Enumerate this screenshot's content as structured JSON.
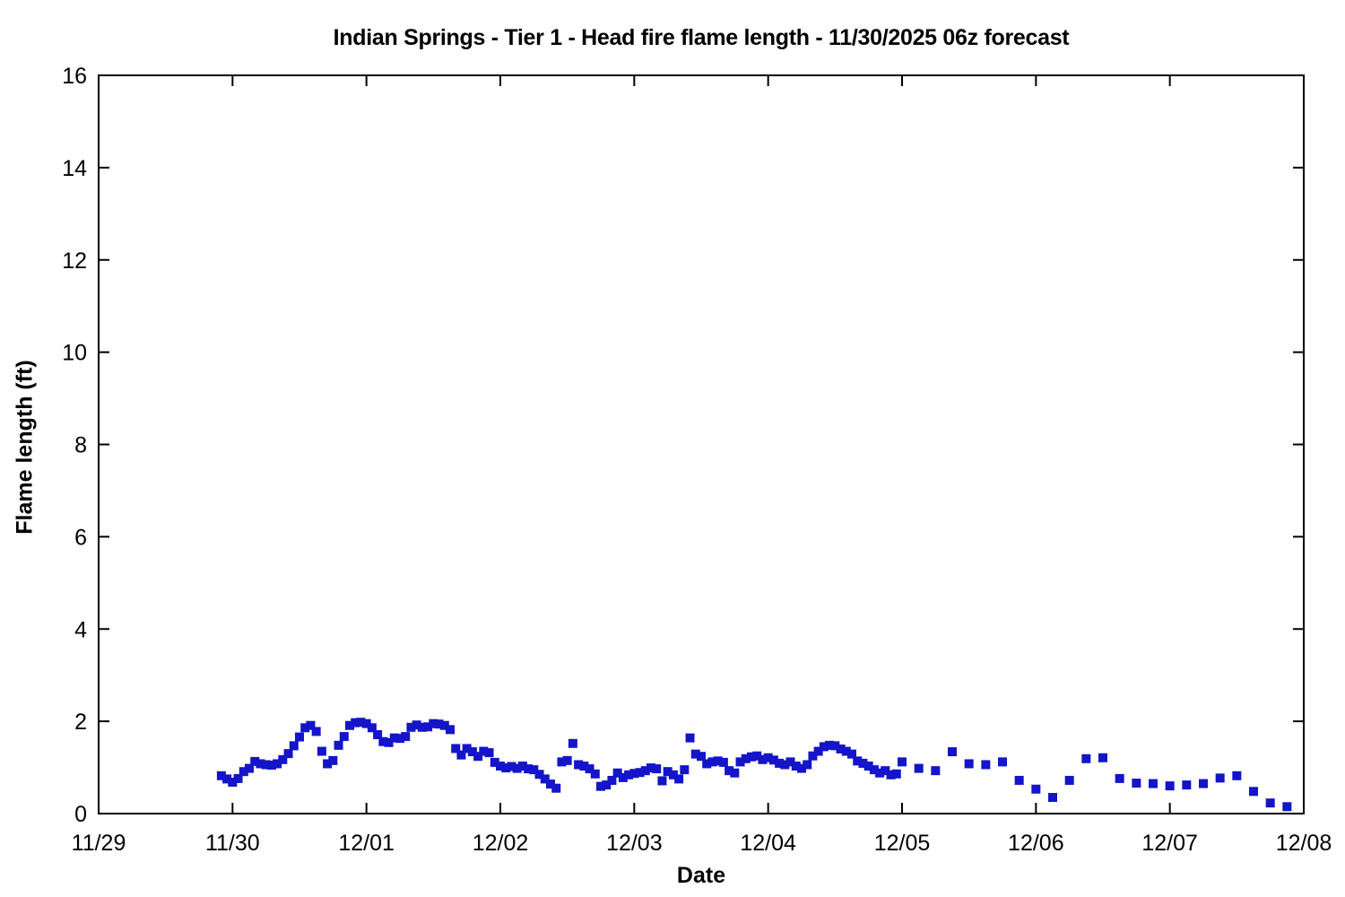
{
  "chart_data": {
    "type": "scatter",
    "title": "Indian Springs - Tier 1 - Head fire flame length - 11/30/2025 06z forecast",
    "xlabel": "Date",
    "ylabel": "Flame length (ft)",
    "marker": "filled-square",
    "marker_color": "#1414C8",
    "marker_size_px": 10,
    "axis_color": "#000000",
    "grid": "off",
    "legend": "none",
    "x_unit": "hours since 11/29 00:00",
    "x_range_hours": [
      0,
      216
    ],
    "ylim": [
      0,
      16
    ],
    "x_tick_labels": [
      "11/29",
      "11/30",
      "12/01",
      "12/02",
      "12/03",
      "12/04",
      "12/05",
      "12/06",
      "12/07",
      "12/08"
    ],
    "x_tick_hours": [
      0,
      24,
      48,
      72,
      96,
      120,
      144,
      168,
      192,
      216
    ],
    "y_ticks": [
      0,
      2,
      4,
      6,
      8,
      10,
      12,
      14,
      16
    ],
    "points": [
      [
        22,
        0.82
      ],
      [
        23,
        0.75
      ],
      [
        24,
        0.68
      ],
      [
        25,
        0.76
      ],
      [
        26,
        0.91
      ],
      [
        27,
        0.98
      ],
      [
        28,
        1.13
      ],
      [
        29,
        1.08
      ],
      [
        30,
        1.06
      ],
      [
        31,
        1.05
      ],
      [
        32,
        1.08
      ],
      [
        33,
        1.17
      ],
      [
        34,
        1.3
      ],
      [
        35,
        1.47
      ],
      [
        36,
        1.66
      ],
      [
        37,
        1.86
      ],
      [
        38,
        1.91
      ],
      [
        39,
        1.78
      ],
      [
        40,
        1.35
      ],
      [
        41,
        1.08
      ],
      [
        42,
        1.15
      ],
      [
        43,
        1.48
      ],
      [
        44,
        1.67
      ],
      [
        45,
        1.91
      ],
      [
        46,
        1.97
      ],
      [
        47,
        1.98
      ],
      [
        48,
        1.95
      ],
      [
        49,
        1.86
      ],
      [
        50,
        1.71
      ],
      [
        51,
        1.56
      ],
      [
        52,
        1.54
      ],
      [
        53,
        1.64
      ],
      [
        54,
        1.63
      ],
      [
        55,
        1.67
      ],
      [
        56,
        1.87
      ],
      [
        57,
        1.92
      ],
      [
        58,
        1.87
      ],
      [
        59,
        1.88
      ],
      [
        60,
        1.95
      ],
      [
        61,
        1.94
      ],
      [
        62,
        1.91
      ],
      [
        63,
        1.82
      ],
      [
        64,
        1.41
      ],
      [
        65,
        1.27
      ],
      [
        66,
        1.41
      ],
      [
        67,
        1.34
      ],
      [
        68,
        1.24
      ],
      [
        69,
        1.35
      ],
      [
        70,
        1.32
      ],
      [
        71,
        1.11
      ],
      [
        72,
        1.03
      ],
      [
        73,
        0.99
      ],
      [
        74,
        1.02
      ],
      [
        75,
        0.98
      ],
      [
        76,
        1.03
      ],
      [
        77,
        0.97
      ],
      [
        78,
        0.95
      ],
      [
        79,
        0.85
      ],
      [
        80,
        0.75
      ],
      [
        81,
        0.64
      ],
      [
        82,
        0.55
      ],
      [
        83,
        1.12
      ],
      [
        84,
        1.15
      ],
      [
        85,
        1.52
      ],
      [
        86,
        1.06
      ],
      [
        87,
        1.03
      ],
      [
        88,
        0.97
      ],
      [
        89,
        0.86
      ],
      [
        90,
        0.59
      ],
      [
        91,
        0.62
      ],
      [
        92,
        0.72
      ],
      [
        93,
        0.88
      ],
      [
        94,
        0.78
      ],
      [
        95,
        0.84
      ],
      [
        96,
        0.87
      ],
      [
        97,
        0.89
      ],
      [
        98,
        0.93
      ],
      [
        99,
        0.99
      ],
      [
        100,
        0.97
      ],
      [
        101,
        0.71
      ],
      [
        102,
        0.91
      ],
      [
        103,
        0.84
      ],
      [
        104,
        0.75
      ],
      [
        105,
        0.95
      ],
      [
        106,
        1.64
      ],
      [
        107,
        1.29
      ],
      [
        108,
        1.24
      ],
      [
        109,
        1.08
      ],
      [
        110,
        1.12
      ],
      [
        111,
        1.14
      ],
      [
        112,
        1.11
      ],
      [
        113,
        0.93
      ],
      [
        114,
        0.88
      ],
      [
        115,
        1.12
      ],
      [
        116,
        1.19
      ],
      [
        117,
        1.23
      ],
      [
        118,
        1.25
      ],
      [
        119,
        1.17
      ],
      [
        120,
        1.21
      ],
      [
        121,
        1.16
      ],
      [
        122,
        1.09
      ],
      [
        123,
        1.06
      ],
      [
        124,
        1.12
      ],
      [
        125,
        1.03
      ],
      [
        126,
        0.98
      ],
      [
        127,
        1.06
      ],
      [
        128,
        1.25
      ],
      [
        129,
        1.35
      ],
      [
        130,
        1.45
      ],
      [
        131,
        1.48
      ],
      [
        132,
        1.47
      ],
      [
        133,
        1.4
      ],
      [
        134,
        1.35
      ],
      [
        135,
        1.29
      ],
      [
        136,
        1.14
      ],
      [
        137,
        1.09
      ],
      [
        138,
        1.03
      ],
      [
        139,
        0.95
      ],
      [
        140,
        0.88
      ],
      [
        141,
        0.93
      ],
      [
        142,
        0.84
      ],
      [
        143,
        0.86
      ],
      [
        144,
        1.12
      ],
      [
        147,
        0.98
      ],
      [
        150,
        0.93
      ],
      [
        153,
        1.34
      ],
      [
        156,
        1.08
      ],
      [
        159,
        1.06
      ],
      [
        162,
        1.12
      ],
      [
        165,
        0.72
      ],
      [
        168,
        0.53
      ],
      [
        171,
        0.35
      ],
      [
        174,
        0.72
      ],
      [
        177,
        1.19
      ],
      [
        180,
        1.21
      ],
      [
        183,
        0.76
      ],
      [
        186,
        0.66
      ],
      [
        189,
        0.65
      ],
      [
        192,
        0.6
      ],
      [
        195,
        0.62
      ],
      [
        198,
        0.65
      ],
      [
        201,
        0.77
      ],
      [
        204,
        0.82
      ],
      [
        207,
        0.48
      ],
      [
        210,
        0.23
      ],
      [
        213,
        0.15
      ]
    ]
  }
}
